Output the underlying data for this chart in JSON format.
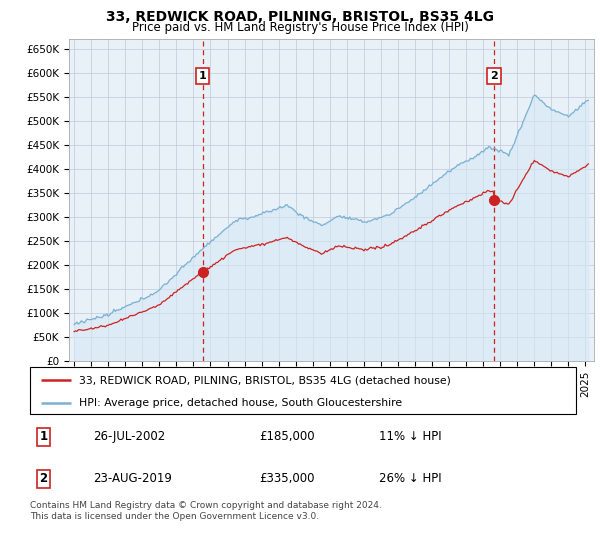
{
  "title": "33, REDWICK ROAD, PILNING, BRISTOL, BS35 4LG",
  "subtitle": "Price paid vs. HM Land Registry's House Price Index (HPI)",
  "ylabel_ticks": [
    "£0",
    "£50K",
    "£100K",
    "£150K",
    "£200K",
    "£250K",
    "£300K",
    "£350K",
    "£400K",
    "£450K",
    "£500K",
    "£550K",
    "£600K",
    "£650K"
  ],
  "ytick_values": [
    0,
    50000,
    100000,
    150000,
    200000,
    250000,
    300000,
    350000,
    400000,
    450000,
    500000,
    550000,
    600000,
    650000
  ],
  "ylim": [
    0,
    670000
  ],
  "xlim_start": 1994.7,
  "xlim_end": 2025.5,
  "sale1_x": 2002.55,
  "sale1_y": 185000,
  "sale1_label": "1",
  "sale2_x": 2019.64,
  "sale2_y": 335000,
  "sale2_label": "2",
  "hpi_color": "#7ab0d4",
  "hpi_fill_color": "#d6e8f5",
  "price_color": "#cc2222",
  "dashed_color": "#cc2222",
  "chart_bg": "#e8f0f8",
  "legend_line1": "33, REDWICK ROAD, PILNING, BRISTOL, BS35 4LG (detached house)",
  "legend_line2": "HPI: Average price, detached house, South Gloucestershire",
  "table_row1": [
    "1",
    "26-JUL-2002",
    "£185,000",
    "11% ↓ HPI"
  ],
  "table_row2": [
    "2",
    "23-AUG-2019",
    "£335,000",
    "26% ↓ HPI"
  ],
  "footer": "Contains HM Land Registry data © Crown copyright and database right 2024.\nThis data is licensed under the Open Government Licence v3.0.",
  "background_color": "#ffffff",
  "grid_color": "#c0c8d8"
}
